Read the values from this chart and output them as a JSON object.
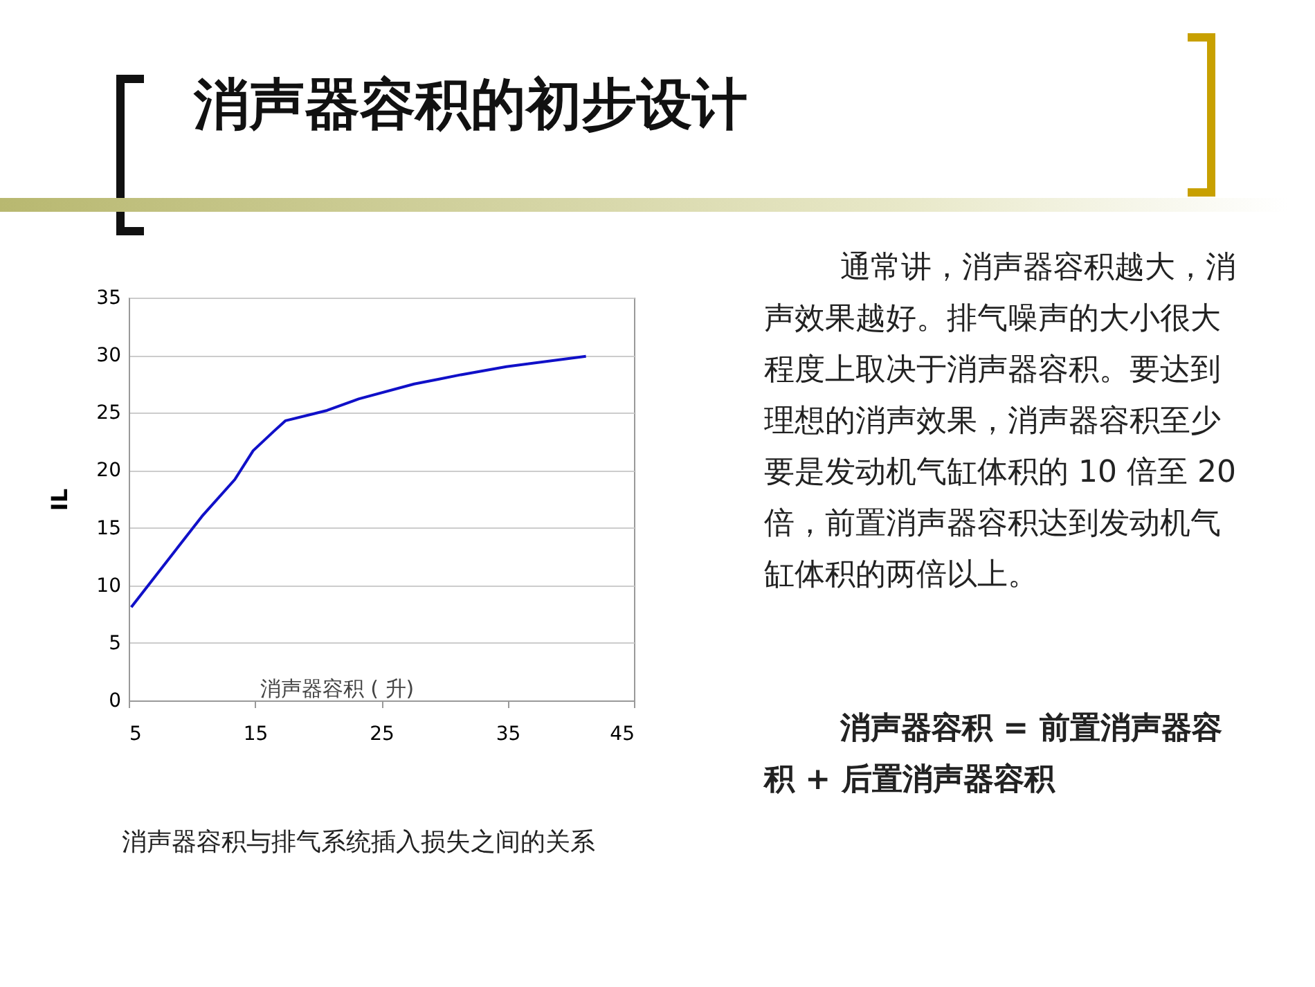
{
  "chart_data": {
    "type": "line",
    "title": "消声器容积的初步设计",
    "xlabel": "消声器容积 ( 升)",
    "ylabel": "IL",
    "x": [
      5.2,
      10.8,
      13.4,
      14.85,
      16.5,
      17.4,
      19.6,
      20.7,
      23.2,
      27.6,
      29.5,
      31.3,
      34.9,
      41.2
    ],
    "series": [
      {
        "color": "#1010c8",
        "values": [
          8.1,
          16.0,
          19.2,
          21.7,
          23.4,
          24.3,
          24.9,
          25.2,
          26.2,
          27.5,
          27.9,
          28.3,
          29.0,
          29.9
        ]
      }
    ],
    "xlim": [
      5,
      45
    ],
    "xticks": [
      5,
      15,
      25,
      35,
      45
    ],
    "ylim": [
      0,
      35
    ],
    "yticks": [
      0,
      5,
      10,
      15,
      20,
      25,
      30,
      35
    ],
    "grid": "y",
    "marker": "none",
    "line_style": "solid",
    "annotations": [
      "通常讲，消声器容积越大，消声效果越好。排气噪声的大小很大程度上取决于消声器容积。要达到理想的消声效果，消声器容积至少要是发动机气缸体积的 10 倍至 20 倍，前置消声器容积达到发动机气缸体积的两倍以上。",
      "消声器容积 = 前置消声器容积 + 后置消声器容积",
      "消声器容积与排气系统插入损失之间的关系"
    ]
  }
}
